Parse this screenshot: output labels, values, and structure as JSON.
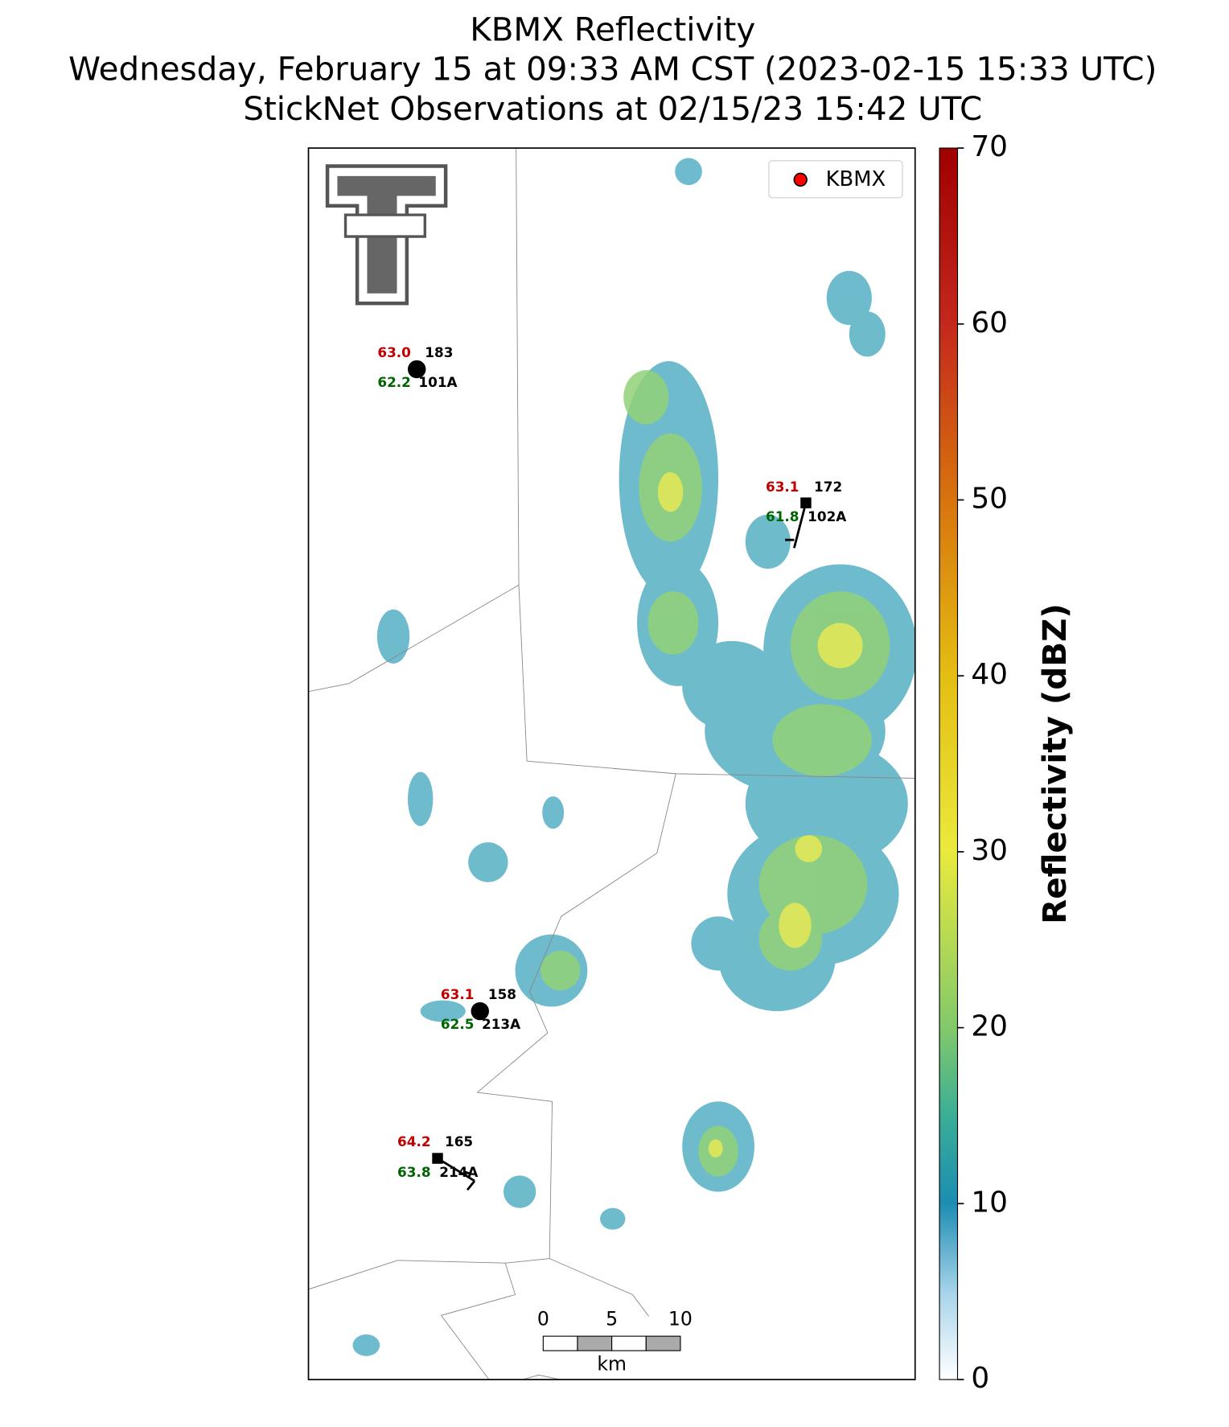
{
  "title": [
    "KBMX Reflectivity",
    "Wednesday, February 15 at 09:33 AM CST (2023-02-15 15:33 UTC)",
    "StickNet Observations at 02/15/23 15:42 UTC"
  ],
  "legend": {
    "label": "KBMX",
    "color": "#ff0000"
  },
  "colorbar": {
    "label": "Reflectivity (dBZ)",
    "lim": [
      0,
      70
    ],
    "ticks": [
      0,
      10,
      20,
      30,
      40,
      50,
      60,
      70
    ]
  },
  "stations": [
    {
      "temperature": "63.0",
      "dewpoint": "62.2",
      "wind": "183",
      "id": "101A"
    },
    {
      "temperature": "63.1",
      "dewpoint": "61.8",
      "wind": "172",
      "id": "102A"
    },
    {
      "temperature": "63.1",
      "dewpoint": "62.5",
      "wind": "158",
      "id": "213A"
    },
    {
      "temperature": "64.2",
      "dewpoint": "63.8",
      "wind": "165",
      "id": "214A"
    }
  ],
  "scale_bar": {
    "ticks": [
      0,
      5,
      10
    ],
    "unit": "km"
  }
}
